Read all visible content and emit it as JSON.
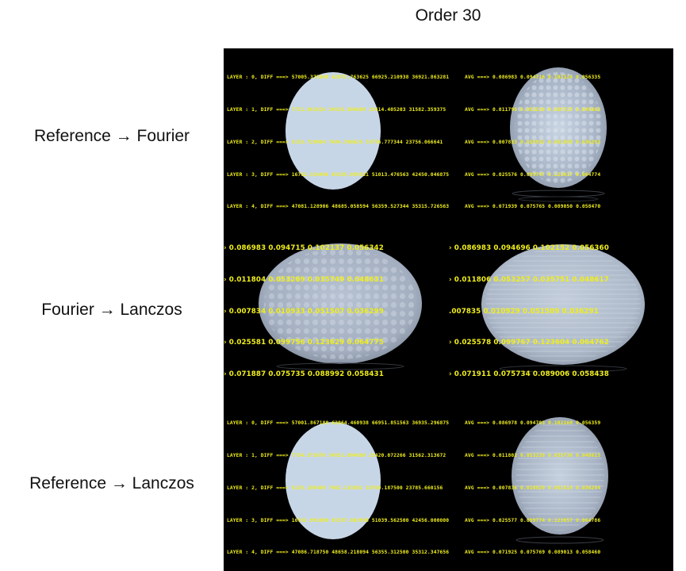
{
  "title": "Order 30",
  "rows": [
    {
      "label": "Reference → Fourier",
      "left_lines": [
        "LAYER : 0, DIFF ===> 57005.375000 62072.763625 66925.210938 36921.863281",
        "LAYER : 1, DIFF ===> 7721.861816 34535.804688 23414.405203 31582.359375",
        "LAYER : 2, DIFF ===> 5133.729004 7484.390625 33756.777344 23756.066641",
        "LAYER : 3, DIFF ===> 16762.316406 65335.059531 51013.476563 42450.046875",
        "LAYER : 4, DIFF ===> 47081.128906 48685.058594 56359.527344 35315.726563"
      ],
      "right_lines": [
        "AVG ===> 0.086983 0.094716 0.102124 0.056335",
        "AVG ===> 0.011798 0.053220 0.035725 0.045603",
        "AVG ===> 0.007833 0.010932 0.051509 0.036293",
        "AVG ===> 0.025576 0.099747 0.123617 0.064774",
        "AVG ===> 0.071939 0.075765 0.089050 0.058470"
      ]
    },
    {
      "label": "Fourier → Lanczos",
      "left_lines": [
        "› 0.086983 0.094715 0.102137 0.056342",
        "› 0.011804 0.053269 0.035749 0.048631",
        "› 0.007834 0.010933 0.051507 0.036299",
        "› 0.025581 0.099756 0.123629 0.064775",
        "› 0.071887 0.075735 0.088992 0.058431"
      ],
      "right_lines": [
        "› 0.086983 0.094696 0.102152 0.056360",
        "› 0.011806 0.053257 0.035751 0.048617",
        ".007835 0.010929 0.051509 0.036291",
        "› 0.025578 0.099767 0.123604 0.064762",
        "› 0.071911 0.075734 0.089006 0.058438"
      ]
    },
    {
      "label": "Reference → Lanczos",
      "left_lines": [
        "LAYER : 0, DIFF ===> 57001.867188 62064.460938 66951.851563 36935.296875",
        "LAYER : 1, DIFF ===> 7734.372070 34551.804688 23420.072266 31562.313672",
        "LAYER : 2, DIFF ===> 5135.105469 7462.133301 33760.187500 23785.660156",
        "LAYER : 3, DIFF ===> 16762.991000 65337.063938 51039.562500 42456.000000",
        "LAYER : 4, DIFF ===> 47086.718750 48658.218094 56355.312500 35312.347656"
      ],
      "right_lines": [
        "AVG ===> 0.086978 0.094703 0.102160 0.056359",
        "AVG ===> 0.011802 0.053239 0.035736 0.048615",
        "AVG ===> 0.007836 0.010929 0.051514 0.036294",
        "AVG ===> 0.025577 0.099774 0.123657 0.064786",
        "AVG ===> 0.071925 0.075769 0.089013 0.058460"
      ]
    }
  ]
}
